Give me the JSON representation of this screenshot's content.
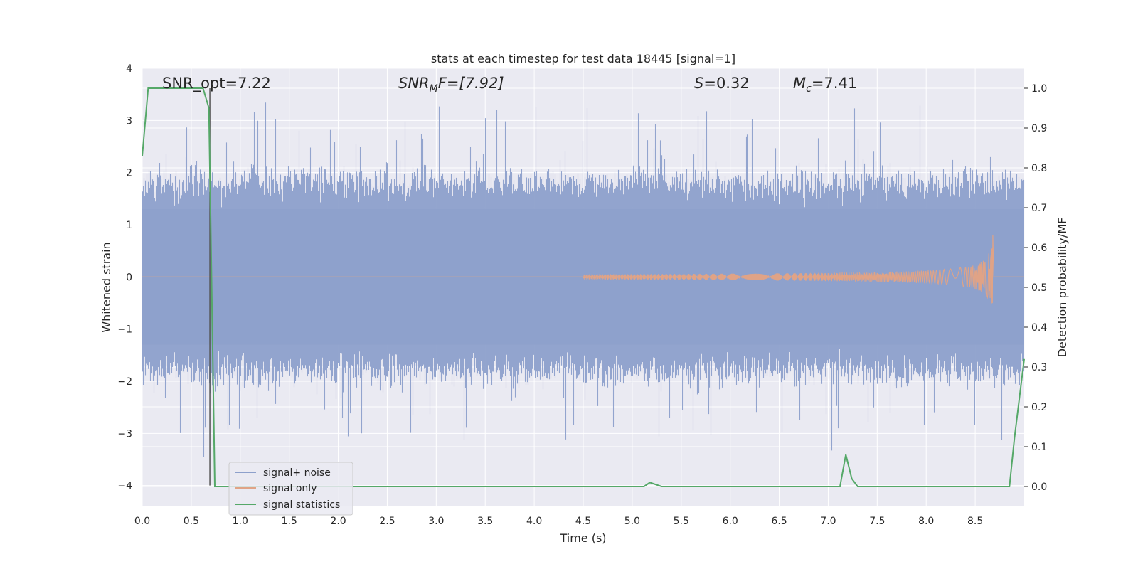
{
  "chart_data": {
    "type": "line",
    "title": "stats at each timestep for test data 18445 [signal=1]",
    "xlabel": "Time (s)",
    "ylabel_left": "Whitened strain",
    "ylabel_right": "Detection probability/MF",
    "xlim": [
      0.0,
      9.0
    ],
    "ylim_left": [
      -4.4,
      4.0
    ],
    "ylim_right": [
      -0.05,
      1.05
    ],
    "x_ticks": [
      "0.0",
      "0.5",
      "1.0",
      "1.5",
      "2.0",
      "2.5",
      "3.0",
      "3.5",
      "4.0",
      "4.5",
      "5.0",
      "5.5",
      "6.0",
      "6.5",
      "7.0",
      "7.5",
      "8.0",
      "8.5"
    ],
    "y_ticks_left": [
      "−4",
      "−3",
      "−2",
      "−1",
      "0",
      "1",
      "2",
      "3",
      "4"
    ],
    "y_ticks_right": [
      "0.0",
      "0.1",
      "0.2",
      "0.3",
      "0.4",
      "0.5",
      "0.6",
      "0.7",
      "0.8",
      "0.9",
      "1.0"
    ],
    "grid": true,
    "legend_placement": "lower-left",
    "annotations": {
      "snr_opt": "SNR_opt=7.22",
      "snr_mf_sym": "SNR",
      "snr_mf_sub": "M",
      "snr_mf_rest": "F=[7.92]",
      "s_sym": "S",
      "s_rest": "=0.32",
      "mc_sym": "M",
      "mc_sub": "c",
      "mc_rest": "=7.41"
    },
    "vertical_marker_x": 0.69,
    "series": [
      {
        "name": "signal+ noise",
        "color": "#8da0cb",
        "axis": "left",
        "description_values": {
          "typical_band": [
            -1.8,
            1.8
          ],
          "max": 3.63,
          "min": -4.0
        }
      },
      {
        "name": "signal only",
        "color": "#e0a386",
        "axis": "left",
        "chirp": {
          "start_x": 4.5,
          "end_x": 8.68,
          "max_amplitude": 0.95
        }
      },
      {
        "name": "signal statistics",
        "color": "#55a868",
        "axis": "right",
        "x": [
          0.0,
          0.06,
          0.12,
          0.62,
          0.68,
          0.74,
          5.12,
          5.18,
          5.3,
          7.12,
          7.18,
          7.24,
          7.3,
          8.85,
          8.9,
          9.0
        ],
        "y": [
          0.83,
          1.0,
          1.0,
          1.0,
          0.95,
          0.0,
          0.0,
          0.01,
          0.0,
          0.0,
          0.08,
          0.02,
          0.0,
          0.0,
          0.12,
          0.32
        ]
      }
    ]
  },
  "colors": {
    "axes_bg": "#eaeaf2",
    "grid": "#ffffff",
    "noise": "#8da0cb",
    "signal": "#e0a386",
    "stats": "#55a868"
  }
}
